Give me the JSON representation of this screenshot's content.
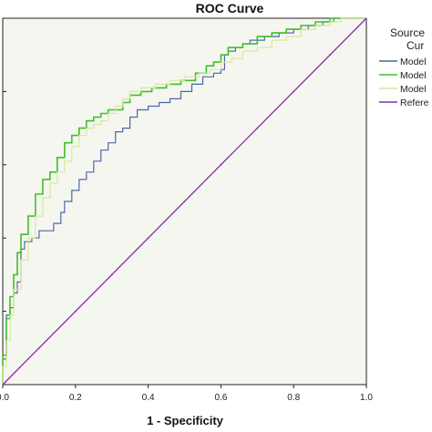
{
  "chart_data": {
    "type": "line",
    "title": "ROC Curve",
    "xlabel": "1 - Specificity",
    "ylabel": "",
    "xlim": [
      0,
      1
    ],
    "ylim": [
      0,
      1
    ],
    "x_ticks": [
      "0.0",
      "0.2",
      "0.4",
      "0.6",
      "0.8",
      "1.0"
    ],
    "grid": false,
    "legend": {
      "title_lines": [
        "Source",
        "Cur"
      ],
      "position": "right",
      "entries": [
        "Model",
        "Model",
        "Model",
        "Refere"
      ]
    },
    "colors": {
      "series_1": "#4a68a8",
      "series_2": "#3fbf2c",
      "series_3": "#d8e89a",
      "reference": "#8a2aa8",
      "plot_bg": "#f6f6f0"
    },
    "series": [
      {
        "name": "Model",
        "x": [
          0.0,
          0.0,
          0.01,
          0.01,
          0.02,
          0.03,
          0.04,
          0.05,
          0.06,
          0.08,
          0.1,
          0.12,
          0.14,
          0.16,
          0.17,
          0.19,
          0.21,
          0.23,
          0.25,
          0.27,
          0.29,
          0.31,
          0.33,
          0.35,
          0.37,
          0.4,
          0.43,
          0.46,
          0.49,
          0.52,
          0.55,
          0.58,
          0.6,
          0.61,
          0.62,
          0.64,
          0.66,
          0.68,
          0.72,
          0.76,
          0.8,
          0.84,
          0.88,
          0.91,
          0.93,
          0.95,
          1.0
        ],
        "y": [
          0.0,
          0.07,
          0.14,
          0.19,
          0.21,
          0.25,
          0.28,
          0.37,
          0.39,
          0.4,
          0.42,
          0.42,
          0.44,
          0.47,
          0.5,
          0.53,
          0.56,
          0.58,
          0.61,
          0.64,
          0.66,
          0.69,
          0.7,
          0.73,
          0.75,
          0.76,
          0.77,
          0.78,
          0.8,
          0.82,
          0.84,
          0.85,
          0.86,
          0.9,
          0.91,
          0.92,
          0.93,
          0.94,
          0.95,
          0.96,
          0.97,
          0.98,
          0.99,
          1.0,
          1.0,
          1.0,
          1.0
        ]
      },
      {
        "name": "Model",
        "x": [
          0.0,
          0.0,
          0.01,
          0.02,
          0.03,
          0.04,
          0.05,
          0.07,
          0.09,
          0.11,
          0.13,
          0.15,
          0.17,
          0.19,
          0.21,
          0.23,
          0.25,
          0.27,
          0.29,
          0.31,
          0.33,
          0.35,
          0.38,
          0.41,
          0.45,
          0.49,
          0.53,
          0.56,
          0.58,
          0.6,
          0.62,
          0.66,
          0.7,
          0.74,
          0.78,
          0.82,
          0.86,
          0.9,
          0.93,
          1.0
        ],
        "y": [
          0.0,
          0.08,
          0.18,
          0.24,
          0.3,
          0.36,
          0.41,
          0.46,
          0.52,
          0.56,
          0.58,
          0.62,
          0.66,
          0.68,
          0.7,
          0.72,
          0.73,
          0.74,
          0.75,
          0.75,
          0.77,
          0.79,
          0.8,
          0.81,
          0.82,
          0.83,
          0.85,
          0.87,
          0.88,
          0.9,
          0.92,
          0.93,
          0.95,
          0.96,
          0.97,
          0.98,
          0.99,
          1.0,
          1.0,
          1.0
        ]
      },
      {
        "name": "Model",
        "x": [
          0.0,
          0.0,
          0.01,
          0.02,
          0.03,
          0.05,
          0.07,
          0.09,
          0.11,
          0.13,
          0.15,
          0.17,
          0.19,
          0.21,
          0.23,
          0.25,
          0.27,
          0.29,
          0.31,
          0.33,
          0.35,
          0.38,
          0.42,
          0.46,
          0.5,
          0.54,
          0.57,
          0.6,
          0.63,
          0.66,
          0.7,
          0.74,
          0.78,
          0.82,
          0.86,
          0.9,
          0.93,
          1.0
        ],
        "y": [
          0.0,
          0.05,
          0.12,
          0.19,
          0.26,
          0.34,
          0.4,
          0.46,
          0.51,
          0.55,
          0.58,
          0.61,
          0.65,
          0.68,
          0.7,
          0.71,
          0.72,
          0.74,
          0.76,
          0.78,
          0.8,
          0.81,
          0.82,
          0.83,
          0.84,
          0.85,
          0.86,
          0.88,
          0.89,
          0.91,
          0.92,
          0.94,
          0.95,
          0.97,
          0.98,
          0.99,
          1.0,
          1.0
        ]
      },
      {
        "name": "Refere",
        "x": [
          0.0,
          1.0
        ],
        "y": [
          0.0,
          1.0
        ]
      }
    ]
  }
}
